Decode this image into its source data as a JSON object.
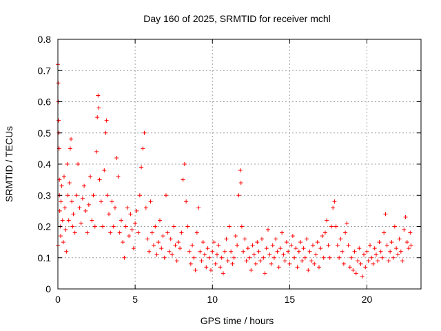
{
  "chart_data": {
    "type": "scatter",
    "title": "Day 160 of 2025, SRMTID for receiver mchl",
    "xlabel": "GPS time / hours",
    "ylabel": "SRMTID / TECUs",
    "xlim": [
      0,
      23.5
    ],
    "ylim": [
      0,
      0.8
    ],
    "xticks": [
      0,
      5,
      10,
      15,
      20
    ],
    "xtick_labels": [
      "0",
      "5",
      "10",
      "15",
      "20"
    ],
    "yticks": [
      0,
      0.1,
      0.2,
      0.3,
      0.4,
      0.5,
      0.6,
      0.7,
      0.8
    ],
    "ytick_labels": [
      "0",
      "0.1",
      "0.2",
      "0.3",
      "0.4",
      "0.5",
      "0.6",
      "0.7",
      "0.8"
    ],
    "grid": true,
    "marker": "+",
    "color": "#ff0000",
    "series": [
      {
        "name": "SRMTID",
        "points": [
          [
            0.0,
            0.14
          ],
          [
            0.0,
            0.72
          ],
          [
            0.02,
            0.66
          ],
          [
            0.03,
            0.6
          ],
          [
            0.05,
            0.54
          ],
          [
            0.07,
            0.5
          ],
          [
            0.08,
            0.45
          ],
          [
            0.1,
            0.35
          ],
          [
            0.1,
            0.3
          ],
          [
            0.12,
            0.25
          ],
          [
            0.15,
            0.2
          ],
          [
            0.18,
            0.17
          ],
          [
            0.2,
            0.28
          ],
          [
            0.25,
            0.33
          ],
          [
            0.3,
            0.22
          ],
          [
            0.35,
            0.15
          ],
          [
            0.4,
            0.36
          ],
          [
            0.45,
            0.26
          ],
          [
            0.5,
            0.19
          ],
          [
            0.55,
            0.12
          ],
          [
            0.6,
            0.4
          ],
          [
            0.65,
            0.3
          ],
          [
            0.7,
            0.22
          ],
          [
            0.75,
            0.34
          ],
          [
            0.8,
            0.45
          ],
          [
            0.85,
            0.48
          ],
          [
            0.9,
            0.28
          ],
          [
            0.95,
            0.2
          ],
          [
            1.0,
            0.24
          ],
          [
            1.1,
            0.18
          ],
          [
            1.2,
            0.3
          ],
          [
            1.3,
            0.4
          ],
          [
            1.4,
            0.26
          ],
          [
            1.5,
            0.21
          ],
          [
            1.6,
            0.29
          ],
          [
            1.7,
            0.33
          ],
          [
            1.8,
            0.25
          ],
          [
            1.9,
            0.18
          ],
          [
            2.0,
            0.27
          ],
          [
            2.1,
            0.36
          ],
          [
            2.2,
            0.22
          ],
          [
            2.3,
            0.3
          ],
          [
            2.4,
            0.2
          ],
          [
            2.5,
            0.44
          ],
          [
            2.55,
            0.55
          ],
          [
            2.6,
            0.62
          ],
          [
            2.65,
            0.58
          ],
          [
            2.7,
            0.35
          ],
          [
            2.8,
            0.28
          ],
          [
            2.9,
            0.2
          ],
          [
            3.0,
            0.38
          ],
          [
            3.1,
            0.5
          ],
          [
            3.15,
            0.54
          ],
          [
            3.2,
            0.3
          ],
          [
            3.3,
            0.24
          ],
          [
            3.4,
            0.18
          ],
          [
            3.5,
            0.28
          ],
          [
            3.6,
            0.2
          ],
          [
            3.7,
            0.26
          ],
          [
            3.8,
            0.42
          ],
          [
            3.9,
            0.36
          ],
          [
            4.0,
            0.18
          ],
          [
            4.1,
            0.22
          ],
          [
            4.2,
            0.15
          ],
          [
            4.3,
            0.1
          ],
          [
            4.4,
            0.2
          ],
          [
            4.5,
            0.26
          ],
          [
            4.6,
            0.17
          ],
          [
            4.7,
            0.24
          ],
          [
            4.8,
            0.19
          ],
          [
            4.9,
            0.13
          ],
          [
            5.0,
            0.21
          ],
          [
            5.1,
            0.25
          ],
          [
            5.2,
            0.18
          ],
          [
            5.3,
            0.3
          ],
          [
            5.4,
            0.39
          ],
          [
            5.5,
            0.45
          ],
          [
            5.6,
            0.5
          ],
          [
            5.7,
            0.26
          ],
          [
            5.8,
            0.16
          ],
          [
            5.9,
            0.12
          ],
          [
            6.0,
            0.28
          ],
          [
            6.1,
            0.18
          ],
          [
            6.2,
            0.14
          ],
          [
            6.3,
            0.2
          ],
          [
            6.4,
            0.11
          ],
          [
            6.5,
            0.15
          ],
          [
            6.6,
            0.22
          ],
          [
            6.7,
            0.13
          ],
          [
            6.8,
            0.17
          ],
          [
            6.9,
            0.1
          ],
          [
            7.0,
            0.3
          ],
          [
            7.1,
            0.18
          ],
          [
            7.2,
            0.12
          ],
          [
            7.3,
            0.16
          ],
          [
            7.4,
            0.11
          ],
          [
            7.5,
            0.2
          ],
          [
            7.6,
            0.14
          ],
          [
            7.7,
            0.09
          ],
          [
            7.8,
            0.15
          ],
          [
            7.9,
            0.13
          ],
          [
            8.0,
            0.18
          ],
          [
            8.1,
            0.35
          ],
          [
            8.2,
            0.4
          ],
          [
            8.3,
            0.28
          ],
          [
            8.4,
            0.2
          ],
          [
            8.5,
            0.12
          ],
          [
            8.6,
            0.08
          ],
          [
            8.7,
            0.14
          ],
          [
            8.8,
            0.1
          ],
          [
            8.9,
            0.06
          ],
          [
            9.0,
            0.18
          ],
          [
            9.1,
            0.26
          ],
          [
            9.2,
            0.12
          ],
          [
            9.3,
            0.09
          ],
          [
            9.4,
            0.15
          ],
          [
            9.5,
            0.11
          ],
          [
            9.6,
            0.07
          ],
          [
            9.7,
            0.13
          ],
          [
            9.8,
            0.1
          ],
          [
            9.9,
            0.06
          ],
          [
            10.0,
            0.12
          ],
          [
            10.1,
            0.15
          ],
          [
            10.2,
            0.08
          ],
          [
            10.3,
            0.11
          ],
          [
            10.4,
            0.14
          ],
          [
            10.5,
            0.07
          ],
          [
            10.6,
            0.1
          ],
          [
            10.7,
            0.05
          ],
          [
            10.8,
            0.12
          ],
          [
            10.9,
            0.16
          ],
          [
            11.0,
            0.09
          ],
          [
            11.1,
            0.2
          ],
          [
            11.2,
            0.12
          ],
          [
            11.3,
            0.08
          ],
          [
            11.4,
            0.1
          ],
          [
            11.5,
            0.17
          ],
          [
            11.6,
            0.14
          ],
          [
            11.7,
            0.3
          ],
          [
            11.8,
            0.38
          ],
          [
            11.85,
            0.34
          ],
          [
            11.9,
            0.2
          ],
          [
            12.0,
            0.12
          ],
          [
            12.1,
            0.16
          ],
          [
            12.2,
            0.09
          ],
          [
            12.3,
            0.13
          ],
          [
            12.4,
            0.1
          ],
          [
            12.5,
            0.06
          ],
          [
            12.6,
            0.14
          ],
          [
            12.7,
            0.11
          ],
          [
            12.8,
            0.08
          ],
          [
            12.9,
            0.15
          ],
          [
            13.0,
            0.12
          ],
          [
            13.1,
            0.09
          ],
          [
            13.2,
            0.16
          ],
          [
            13.3,
            0.1
          ],
          [
            13.4,
            0.05
          ],
          [
            13.5,
            0.13
          ],
          [
            13.6,
            0.19
          ],
          [
            13.7,
            0.11
          ],
          [
            13.8,
            0.08
          ],
          [
            13.9,
            0.14
          ],
          [
            14.0,
            0.1
          ],
          [
            14.1,
            0.16
          ],
          [
            14.2,
            0.12
          ],
          [
            14.3,
            0.07
          ],
          [
            14.4,
            0.13
          ],
          [
            14.5,
            0.18
          ],
          [
            14.6,
            0.11
          ],
          [
            14.7,
            0.09
          ],
          [
            14.8,
            0.15
          ],
          [
            14.9,
            0.12
          ],
          [
            15.0,
            0.08
          ],
          [
            15.1,
            0.14
          ],
          [
            15.2,
            0.17
          ],
          [
            15.3,
            0.1
          ],
          [
            15.4,
            0.13
          ],
          [
            15.5,
            0.07
          ],
          [
            15.6,
            0.12
          ],
          [
            15.7,
            0.15
          ],
          [
            15.8,
            0.09
          ],
          [
            15.9,
            0.13
          ],
          [
            16.0,
            0.1
          ],
          [
            16.1,
            0.16
          ],
          [
            16.2,
            0.06
          ],
          [
            16.3,
            0.12
          ],
          [
            16.4,
            0.09
          ],
          [
            16.5,
            0.14
          ],
          [
            16.6,
            0.08
          ],
          [
            16.7,
            0.11
          ],
          [
            16.8,
            0.15
          ],
          [
            16.9,
            0.07
          ],
          [
            17.0,
            0.13
          ],
          [
            17.1,
            0.17
          ],
          [
            17.2,
            0.1
          ],
          [
            17.3,
            0.18
          ],
          [
            17.4,
            0.22
          ],
          [
            17.5,
            0.14
          ],
          [
            17.6,
            0.1
          ],
          [
            17.7,
            0.2
          ],
          [
            17.8,
            0.26
          ],
          [
            17.9,
            0.28
          ],
          [
            18.0,
            0.2
          ],
          [
            18.1,
            0.14
          ],
          [
            18.2,
            0.1
          ],
          [
            18.3,
            0.16
          ],
          [
            18.4,
            0.12
          ],
          [
            18.5,
            0.08
          ],
          [
            18.6,
            0.18
          ],
          [
            18.7,
            0.21
          ],
          [
            18.8,
            0.14
          ],
          [
            18.9,
            0.07
          ],
          [
            19.0,
            0.1
          ],
          [
            19.1,
            0.06
          ],
          [
            19.2,
            0.12
          ],
          [
            19.3,
            0.05
          ],
          [
            19.4,
            0.09
          ],
          [
            19.5,
            0.13
          ],
          [
            19.6,
            0.08
          ],
          [
            19.7,
            0.04
          ],
          [
            19.8,
            0.11
          ],
          [
            19.9,
            0.07
          ],
          [
            20.0,
            0.12
          ],
          [
            20.1,
            0.09
          ],
          [
            20.2,
            0.14
          ],
          [
            20.3,
            0.1
          ],
          [
            20.4,
            0.08
          ],
          [
            20.5,
            0.13
          ],
          [
            20.6,
            0.11
          ],
          [
            20.7,
            0.09
          ],
          [
            20.8,
            0.15
          ],
          [
            20.9,
            0.12
          ],
          [
            21.0,
            0.1
          ],
          [
            21.1,
            0.18
          ],
          [
            21.2,
            0.24
          ],
          [
            21.3,
            0.14
          ],
          [
            21.4,
            0.09
          ],
          [
            21.5,
            0.12
          ],
          [
            21.6,
            0.15
          ],
          [
            21.7,
            0.1
          ],
          [
            21.8,
            0.2
          ],
          [
            21.9,
            0.13
          ],
          [
            22.0,
            0.11
          ],
          [
            22.1,
            0.16
          ],
          [
            22.2,
            0.12
          ],
          [
            22.3,
            0.09
          ],
          [
            22.4,
            0.19
          ],
          [
            22.5,
            0.23
          ],
          [
            22.6,
            0.15
          ],
          [
            22.7,
            0.13
          ],
          [
            22.8,
            0.18
          ],
          [
            22.85,
            0.14
          ]
        ]
      }
    ]
  }
}
